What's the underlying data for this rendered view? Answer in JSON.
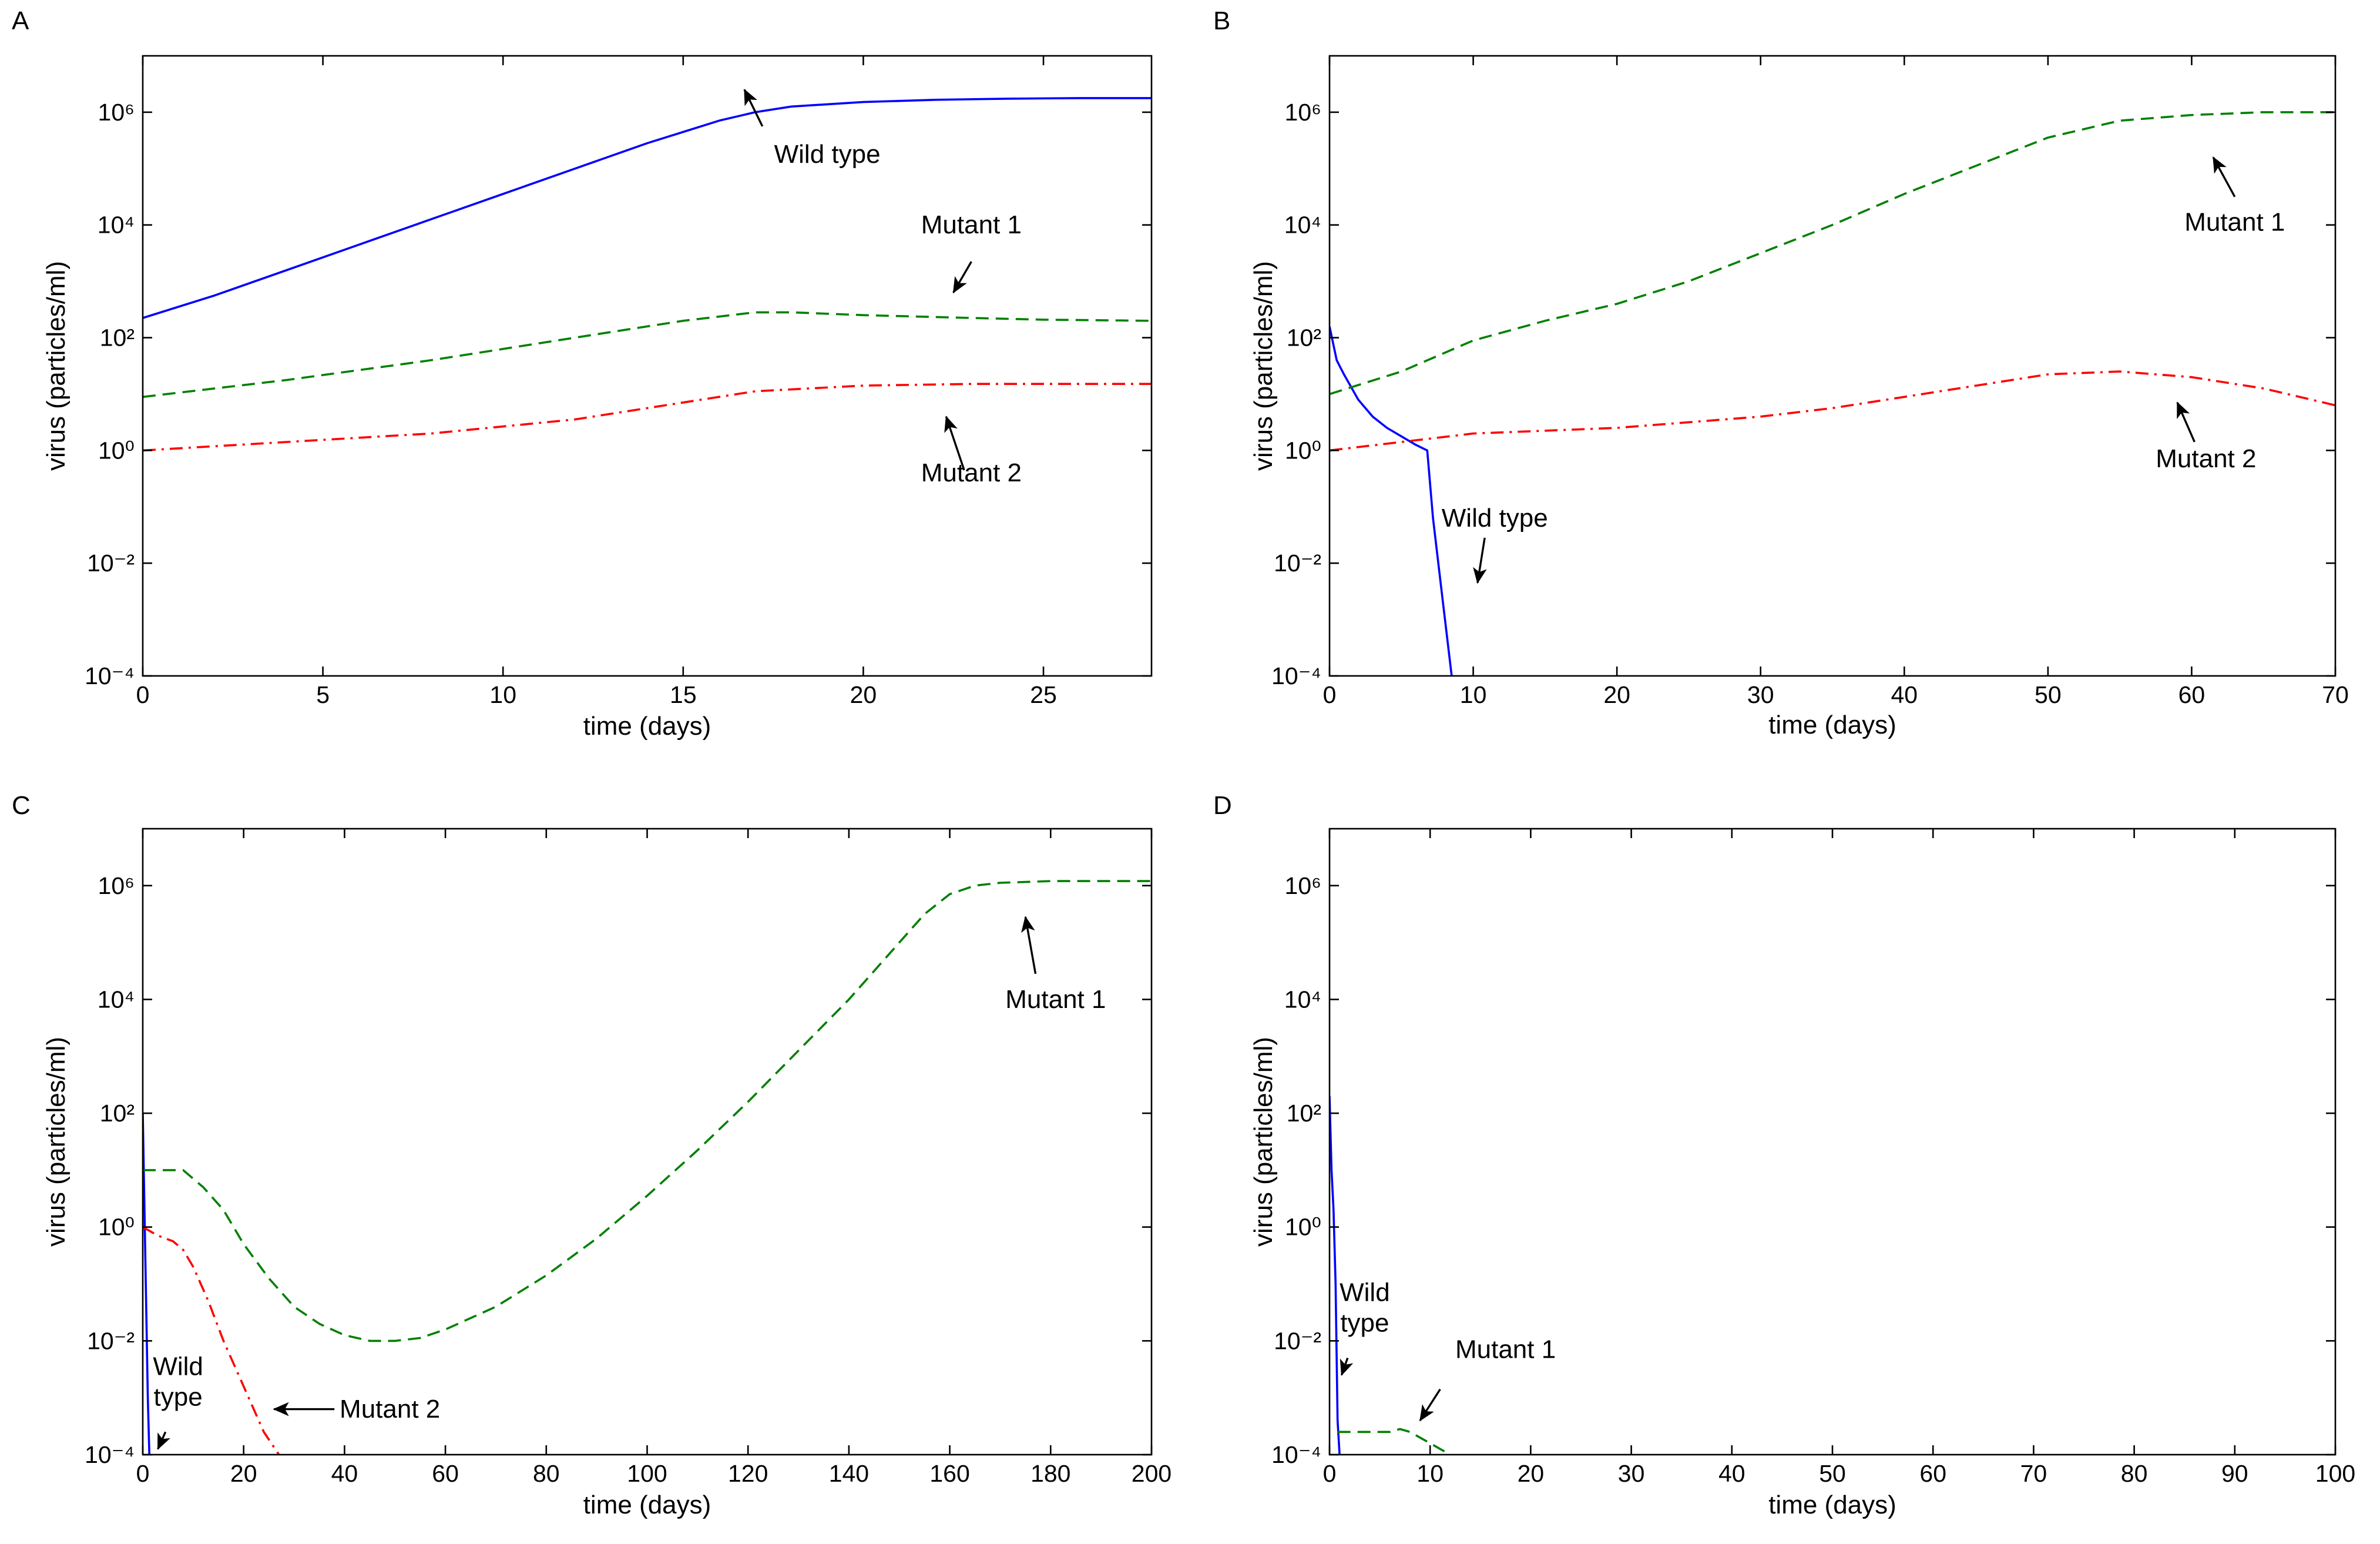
{
  "chart_data": [
    {
      "type": "line",
      "panel_label": "A",
      "xlabel": "time (days)",
      "ylabel": "virus (particles/ml)",
      "yscale": "log",
      "xlim": [
        0,
        28
      ],
      "ylim_exp": [
        -4,
        7
      ],
      "x_ticks": [
        0,
        5,
        10,
        15,
        20,
        25
      ],
      "y_ticks_exp": [
        -4,
        -2,
        0,
        2,
        4,
        6
      ],
      "series": [
        {
          "name": "Wild type",
          "color": "#0000ff",
          "style": "solid",
          "x": [
            0,
            2,
            4,
            6,
            8,
            10,
            12,
            14,
            15,
            16,
            17,
            18,
            20,
            22,
            24,
            26,
            28
          ],
          "y_log10": [
            2.35,
            2.75,
            3.2,
            3.65,
            4.1,
            4.55,
            5.0,
            5.45,
            5.65,
            5.85,
            6.0,
            6.1,
            6.18,
            6.22,
            6.24,
            6.25,
            6.25
          ]
        },
        {
          "name": "Mutant 1",
          "color": "#008000",
          "style": "dashed",
          "x": [
            0,
            4,
            8,
            12,
            15,
            17,
            18,
            20,
            23,
            25,
            28
          ],
          "y_log10": [
            0.95,
            1.25,
            1.6,
            2.0,
            2.3,
            2.45,
            2.45,
            2.4,
            2.35,
            2.32,
            2.3
          ]
        },
        {
          "name": "Mutant 2",
          "color": "#ff0000",
          "style": "dashdot",
          "x": [
            0,
            4,
            8,
            12,
            15,
            17,
            20,
            23,
            26,
            28
          ],
          "y_log10": [
            0.0,
            0.15,
            0.3,
            0.55,
            0.85,
            1.05,
            1.15,
            1.18,
            1.18,
            1.18
          ]
        }
      ],
      "annotations": [
        {
          "text": "Wild type",
          "lines": [
            "Wild type"
          ],
          "text_x": 19.0,
          "text_y_log10": 5.1,
          "arrow_from": [
            17.2,
            5.75
          ],
          "arrow_to": [
            16.7,
            6.4
          ]
        },
        {
          "text": "Mutant 1",
          "lines": [
            "Mutant 1"
          ],
          "text_x": 23.0,
          "text_y_log10": 3.85,
          "arrow_from": [
            23.0,
            3.35
          ],
          "arrow_to": [
            22.5,
            2.8
          ]
        },
        {
          "text": "Mutant 2",
          "lines": [
            "Mutant 2"
          ],
          "text_x": 23.0,
          "text_y_log10": -0.55,
          "arrow_from": [
            22.8,
            -0.35
          ],
          "arrow_to": [
            22.3,
            0.6
          ]
        }
      ]
    },
    {
      "type": "line",
      "panel_label": "B",
      "xlabel": "time (days)",
      "ylabel": "virus (particles/ml)",
      "yscale": "log",
      "xlim": [
        0,
        70
      ],
      "ylim_exp": [
        -4,
        7
      ],
      "x_ticks": [
        0,
        10,
        20,
        30,
        40,
        50,
        60,
        70
      ],
      "y_ticks_exp": [
        -4,
        -2,
        0,
        2,
        4,
        6
      ],
      "series": [
        {
          "name": "Wild type",
          "color": "#0000ff",
          "style": "solid",
          "x": [
            0,
            0.5,
            1,
            2,
            3,
            4,
            5,
            6,
            6.8,
            7.2,
            7.8,
            8.5
          ],
          "y_log10": [
            2.2,
            1.6,
            1.35,
            0.9,
            0.6,
            0.4,
            0.25,
            0.1,
            0.0,
            -1.2,
            -2.5,
            -4.0
          ]
        },
        {
          "name": "Mutant 1",
          "color": "#008000",
          "style": "dashed",
          "x": [
            0,
            5,
            10,
            15,
            20,
            25,
            30,
            35,
            40,
            45,
            50,
            55,
            60,
            65,
            70
          ],
          "y_log10": [
            1.0,
            1.4,
            1.95,
            2.3,
            2.6,
            3.0,
            3.5,
            4.0,
            4.55,
            5.05,
            5.55,
            5.85,
            5.95,
            6.0,
            6.0
          ]
        },
        {
          "name": "Mutant 2",
          "color": "#ff0000",
          "style": "dashdot",
          "x": [
            0,
            5,
            10,
            15,
            20,
            25,
            30,
            35,
            40,
            45,
            50,
            55,
            60,
            65,
            70
          ],
          "y_log10": [
            0.0,
            0.15,
            0.3,
            0.35,
            0.4,
            0.5,
            0.6,
            0.75,
            0.95,
            1.15,
            1.35,
            1.4,
            1.3,
            1.1,
            0.8
          ]
        }
      ],
      "annotations": [
        {
          "text": "Wild type",
          "lines": [
            "Wild type"
          ],
          "text_x": 11.5,
          "text_y_log10": -1.35,
          "arrow_from": [
            10.8,
            -1.55
          ],
          "arrow_to": [
            10.3,
            -2.35
          ]
        },
        {
          "text": "Mutant 1",
          "lines": [
            "Mutant 1"
          ],
          "text_x": 63.0,
          "text_y_log10": 3.9,
          "arrow_from": [
            63.0,
            4.5
          ],
          "arrow_to": [
            61.5,
            5.2
          ]
        },
        {
          "text": "Mutant 2",
          "lines": [
            "Mutant 2"
          ],
          "text_x": 61.0,
          "text_y_log10": -0.3,
          "arrow_from": [
            60.2,
            0.15
          ],
          "arrow_to": [
            59.0,
            0.85
          ]
        }
      ]
    },
    {
      "type": "line",
      "panel_label": "C",
      "xlabel": "time (days)",
      "ylabel": "virus (particles/ml)",
      "yscale": "log",
      "xlim": [
        0,
        200
      ],
      "ylim_exp": [
        -4,
        7
      ],
      "x_ticks": [
        0,
        20,
        40,
        60,
        80,
        100,
        120,
        140,
        160,
        180,
        200
      ],
      "y_ticks_exp": [
        -4,
        -2,
        0,
        2,
        4,
        6
      ],
      "series": [
        {
          "name": "Wild type",
          "color": "#0000ff",
          "style": "solid",
          "x": [
            0,
            0.5,
            1.0,
            1.3
          ],
          "y_log10": [
            2.0,
            -0.5,
            -3.0,
            -4.0
          ]
        },
        {
          "name": "Mutant 1",
          "color": "#008000",
          "style": "dashed",
          "x": [
            0,
            5,
            8,
            12,
            16,
            20,
            25,
            30,
            35,
            40,
            45,
            50,
            55,
            60,
            70,
            80,
            90,
            100,
            110,
            120,
            130,
            140,
            150,
            155,
            160,
            165,
            170,
            180,
            190,
            200
          ],
          "y_log10": [
            1.0,
            1.0,
            1.0,
            0.7,
            0.3,
            -0.3,
            -0.9,
            -1.4,
            -1.7,
            -1.9,
            -2.0,
            -2.0,
            -1.95,
            -1.8,
            -1.4,
            -0.85,
            -0.2,
            0.55,
            1.35,
            2.2,
            3.1,
            4.0,
            5.0,
            5.5,
            5.85,
            6.0,
            6.05,
            6.08,
            6.08,
            6.08
          ]
        },
        {
          "name": "Mutant 2",
          "color": "#ff0000",
          "style": "dashdot",
          "x": [
            0,
            3,
            6,
            8,
            10,
            13,
            16,
            20,
            24,
            27
          ],
          "y_log10": [
            0.0,
            -0.15,
            -0.25,
            -0.4,
            -0.7,
            -1.3,
            -2.0,
            -2.8,
            -3.6,
            -4.0
          ]
        }
      ],
      "annotations": [
        {
          "text": "Wild type",
          "lines": [
            "Wild",
            "type"
          ],
          "text_x": 7.0,
          "text_y_log10": -2.6,
          "arrow_from": [
            4.5,
            -3.6
          ],
          "arrow_to": [
            3.0,
            -3.9
          ]
        },
        {
          "text": "Mutant 2",
          "lines": [
            "Mutant 2"
          ],
          "text_x": 49.0,
          "text_y_log10": -3.35,
          "arrow_from": [
            38.0,
            -3.2
          ],
          "arrow_to": [
            26.0,
            -3.2
          ]
        },
        {
          "text": "Mutant 1",
          "lines": [
            "Mutant 1"
          ],
          "text_x": 181.0,
          "text_y_log10": 3.85,
          "arrow_from": [
            177.0,
            4.45
          ],
          "arrow_to": [
            175.0,
            5.45
          ]
        }
      ]
    },
    {
      "type": "line",
      "panel_label": "D",
      "xlabel": "time (days)",
      "ylabel": "virus (particles/ml)",
      "yscale": "log",
      "xlim": [
        0,
        100
      ],
      "ylim_exp": [
        -4,
        7
      ],
      "x_ticks": [
        0,
        10,
        20,
        30,
        40,
        50,
        60,
        70,
        80,
        90,
        100
      ],
      "y_ticks_exp": [
        -4,
        -2,
        0,
        2,
        4,
        6
      ],
      "series": [
        {
          "name": "Wild type",
          "color": "#0000ff",
          "style": "solid",
          "x": [
            0,
            0.2,
            0.4,
            0.6,
            0.8,
            1.0
          ],
          "y_log10": [
            2.3,
            1.0,
            0.3,
            -1.0,
            -3.4,
            -4.0
          ]
        },
        {
          "name": "Mutant 1",
          "color": "#008000",
          "style": "dashed",
          "x": [
            0.8,
            2,
            4,
            6,
            7,
            8,
            9,
            10,
            11,
            12
          ],
          "y_log10": [
            -3.6,
            -3.6,
            -3.6,
            -3.6,
            -3.55,
            -3.6,
            -3.7,
            -3.8,
            -3.9,
            -4.0
          ]
        }
      ],
      "annotations": [
        {
          "text": "Wild type",
          "lines": [
            "Wild",
            "type"
          ],
          "text_x": 3.5,
          "text_y_log10": -1.3,
          "arrow_from": [
            1.8,
            -2.3
          ],
          "arrow_to": [
            1.2,
            -2.6
          ]
        },
        {
          "text": "Mutant 1",
          "lines": [
            "Mutant 1"
          ],
          "text_x": 17.5,
          "text_y_log10": -2.3,
          "arrow_from": [
            11.0,
            -2.85
          ],
          "arrow_to": [
            9.0,
            -3.4
          ]
        }
      ]
    }
  ]
}
